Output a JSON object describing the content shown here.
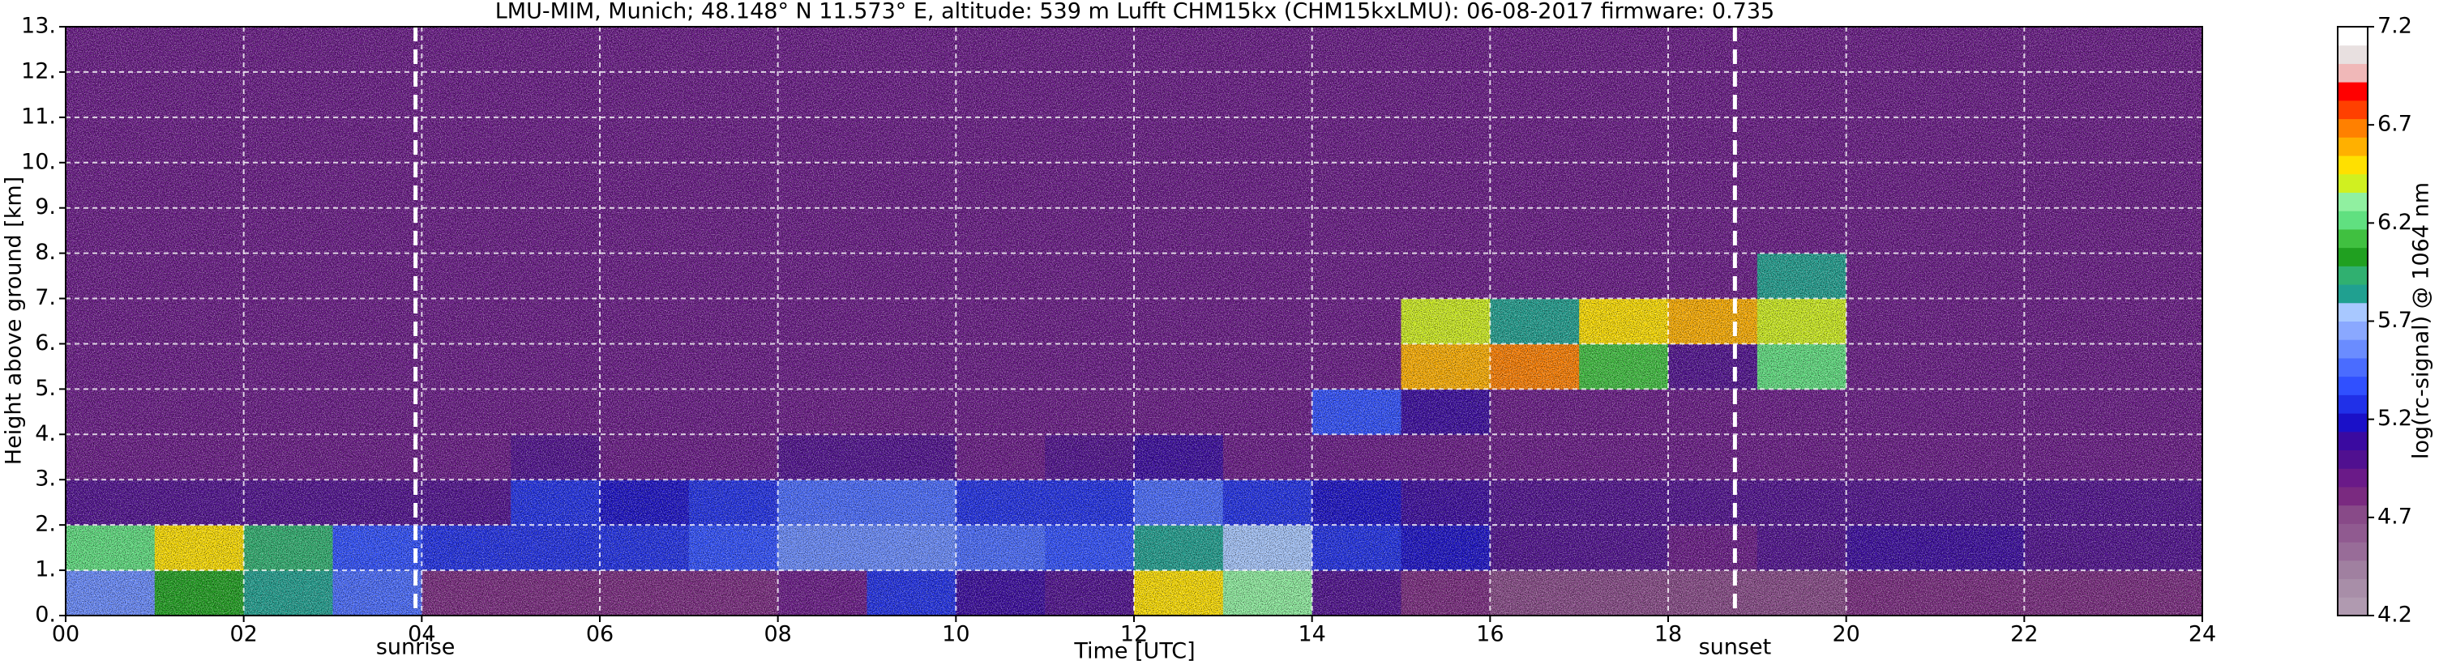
{
  "chart_data": {
    "type": "heatmap",
    "title": "LMU-MIM, Munich; 48.148° N 11.573° E, altitude: 539 m    Lufft CHM15kx (CHM15kxLMU): 06-08-2017    firmware: 0.735",
    "xlabel": "Time [UTC]",
    "ylabel": "Height above ground [km]",
    "xlim": [
      0,
      24
    ],
    "ylim": [
      0,
      13
    ],
    "xticks": [
      {
        "value": 0,
        "label": "00"
      },
      {
        "value": 2,
        "label": "02"
      },
      {
        "value": 4,
        "label": "04"
      },
      {
        "value": 6,
        "label": "06"
      },
      {
        "value": 8,
        "label": "08"
      },
      {
        "value": 10,
        "label": "10"
      },
      {
        "value": 12,
        "label": "12"
      },
      {
        "value": 14,
        "label": "14"
      },
      {
        "value": 16,
        "label": "16"
      },
      {
        "value": 18,
        "label": "18"
      },
      {
        "value": 20,
        "label": "20"
      },
      {
        "value": 22,
        "label": "22"
      },
      {
        "value": 24,
        "label": "24"
      }
    ],
    "yticks": [
      {
        "value": 0,
        "label": "0."
      },
      {
        "value": 1,
        "label": "1."
      },
      {
        "value": 2,
        "label": "2."
      },
      {
        "value": 3,
        "label": "3."
      },
      {
        "value": 4,
        "label": "4."
      },
      {
        "value": 5,
        "label": "5."
      },
      {
        "value": 6,
        "label": "6."
      },
      {
        "value": 7,
        "label": "7."
      },
      {
        "value": 8,
        "label": "8."
      },
      {
        "value": 9,
        "label": "9."
      },
      {
        "value": 10,
        "label": "10."
      },
      {
        "value": 11,
        "label": "11."
      },
      {
        "value": 12,
        "label": "12."
      },
      {
        "value": 13,
        "label": "13."
      }
    ],
    "grid": true,
    "xbins": [
      0,
      1,
      2,
      3,
      4,
      5,
      6,
      7,
      8,
      9,
      10,
      11,
      12,
      13,
      14,
      15,
      16,
      17,
      18,
      19,
      20,
      21,
      22,
      23,
      24
    ],
    "ybins": [
      0,
      1,
      2,
      3,
      4,
      5,
      6,
      7,
      8,
      9,
      10,
      11,
      12,
      13
    ],
    "z": [
      [
        5.6,
        6.0,
        5.8,
        5.5,
        4.8,
        4.8,
        4.8,
        4.8,
        4.9,
        5.3,
        5.1,
        5.0,
        6.5,
        6.3,
        5.0,
        4.8,
        4.7,
        4.7,
        4.7,
        4.7,
        4.8,
        4.8,
        4.8,
        4.8
      ],
      [
        6.2,
        6.5,
        5.9,
        5.4,
        5.3,
        5.3,
        5.3,
        5.4,
        5.6,
        5.6,
        5.5,
        5.4,
        5.8,
        5.7,
        5.3,
        5.2,
        5.0,
        5.0,
        4.9,
        5.0,
        5.1,
        5.1,
        5.0,
        5.0
      ],
      [
        5.0,
        5.0,
        5.0,
        5.0,
        5.0,
        5.3,
        5.2,
        5.3,
        5.5,
        5.5,
        5.3,
        5.3,
        5.5,
        5.3,
        5.2,
        5.1,
        5.0,
        5.0,
        5.0,
        5.0,
        5.0,
        5.0,
        5.0,
        5.0
      ],
      [
        4.9,
        4.9,
        4.9,
        4.9,
        4.9,
        5.0,
        4.9,
        4.9,
        5.0,
        5.0,
        4.9,
        5.0,
        5.1,
        4.9,
        4.9,
        4.9,
        4.9,
        4.9,
        4.9,
        4.9,
        4.9,
        4.9,
        4.9,
        4.9
      ],
      [
        4.9,
        4.9,
        4.9,
        4.9,
        4.9,
        4.9,
        4.9,
        4.9,
        4.9,
        4.9,
        4.9,
        4.9,
        4.9,
        4.9,
        5.4,
        5.1,
        4.9,
        4.9,
        4.9,
        4.9,
        4.9,
        4.9,
        4.9,
        4.9
      ],
      [
        4.9,
        4.9,
        4.9,
        4.9,
        4.9,
        4.9,
        4.9,
        4.9,
        4.9,
        4.9,
        4.9,
        4.9,
        4.9,
        4.9,
        4.9,
        6.6,
        6.7,
        6.1,
        5.0,
        6.2,
        4.9,
        4.9,
        4.9,
        4.9
      ],
      [
        4.9,
        4.9,
        4.9,
        4.9,
        4.9,
        4.9,
        4.9,
        4.9,
        4.9,
        4.9,
        4.9,
        4.9,
        4.9,
        4.9,
        4.9,
        6.4,
        5.8,
        6.5,
        6.6,
        6.4,
        4.9,
        4.9,
        4.9,
        4.9
      ],
      [
        4.9,
        4.9,
        4.9,
        4.9,
        4.9,
        4.9,
        4.9,
        4.9,
        4.9,
        4.9,
        4.9,
        4.9,
        4.9,
        4.9,
        4.9,
        4.9,
        4.9,
        4.9,
        4.9,
        5.8,
        4.9,
        4.9,
        4.9,
        4.9
      ],
      [
        4.9,
        4.9,
        4.9,
        4.9,
        4.9,
        4.9,
        4.9,
        4.9,
        4.9,
        4.9,
        4.9,
        4.9,
        4.9,
        4.9,
        4.9,
        4.9,
        4.9,
        4.9,
        4.9,
        4.9,
        4.9,
        4.9,
        4.9,
        4.9
      ],
      [
        4.9,
        4.9,
        4.9,
        4.9,
        4.9,
        4.9,
        4.9,
        4.9,
        4.9,
        4.9,
        4.9,
        4.9,
        4.9,
        4.9,
        4.9,
        4.9,
        4.9,
        4.9,
        4.9,
        4.9,
        4.9,
        4.9,
        4.9,
        4.9
      ],
      [
        4.9,
        4.9,
        4.9,
        4.9,
        4.9,
        4.9,
        4.9,
        4.9,
        4.9,
        4.9,
        4.9,
        4.9,
        4.9,
        4.9,
        4.9,
        4.9,
        4.9,
        4.9,
        4.9,
        4.9,
        4.9,
        4.9,
        4.9,
        4.9
      ],
      [
        4.9,
        4.9,
        4.9,
        4.9,
        4.9,
        4.9,
        4.9,
        4.9,
        4.9,
        4.9,
        4.9,
        4.9,
        4.9,
        4.9,
        4.9,
        4.9,
        4.9,
        4.9,
        4.9,
        4.9,
        4.9,
        4.9,
        4.9,
        4.9
      ],
      [
        4.9,
        4.9,
        4.9,
        4.9,
        4.9,
        4.9,
        4.9,
        4.9,
        4.9,
        4.9,
        4.9,
        4.9,
        4.9,
        4.9,
        4.9,
        4.9,
        4.9,
        4.9,
        4.9,
        4.9,
        4.9,
        4.9,
        4.9,
        4.9
      ]
    ],
    "annotations": [
      {
        "text": "sunrise",
        "x": 3.93
      },
      {
        "text": "sunset",
        "x": 18.75
      }
    ],
    "colorbar": {
      "label": "log(rc-signal) @ 1064 nm",
      "lim": [
        4.2,
        7.2
      ],
      "ticks": [
        4.2,
        4.7,
        5.2,
        5.7,
        6.2,
        6.7,
        7.2
      ],
      "colors": [
        "#b09ab0",
        "#a88ea8",
        "#a080a0",
        "#986c98",
        "#905a90",
        "#884a88",
        "#7a2a80",
        "#6a1a88",
        "#501090",
        "#3a0aa0",
        "#1a10c8",
        "#2030e8",
        "#3050ff",
        "#4a6cff",
        "#6a8cff",
        "#8aa8ff",
        "#a8c8ff",
        "#20a090",
        "#30b070",
        "#20a020",
        "#40c040",
        "#60e080",
        "#90f0a0",
        "#d0f020",
        "#ffe000",
        "#ffb000",
        "#ff8000",
        "#ff4000",
        "#ff0000",
        "#f0b8b8",
        "#e8e0e0",
        "#ffffff"
      ]
    }
  }
}
